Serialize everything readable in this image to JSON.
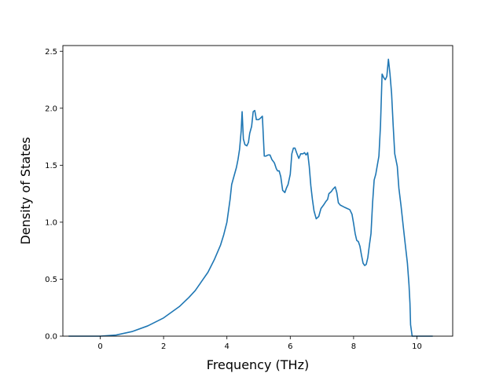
{
  "chart_data": {
    "type": "line",
    "title": "",
    "xlabel": "Frequency (THz)",
    "ylabel": "Density of States",
    "xlim": [
      -1.18,
      11.13
    ],
    "ylim": [
      0.0,
      2.55
    ],
    "xticks": [
      0,
      2,
      4,
      6,
      8,
      10
    ],
    "yticks": [
      0.0,
      0.5,
      1.0,
      1.5,
      2.0,
      2.5
    ],
    "xtick_labels": [
      "0",
      "2",
      "4",
      "6",
      "8",
      "10"
    ],
    "ytick_labels": [
      "0.0",
      "0.5",
      "1.0",
      "1.5",
      "2.0",
      "2.5"
    ],
    "grid": false,
    "legend": "none",
    "series": [
      {
        "color": "#1f77b4",
        "points": [
          [
            -1.0,
            0.0
          ],
          [
            0.0,
            0.0
          ],
          [
            0.5,
            0.01
          ],
          [
            1.0,
            0.04
          ],
          [
            1.5,
            0.09
          ],
          [
            2.0,
            0.16
          ],
          [
            2.5,
            0.26
          ],
          [
            2.8,
            0.34
          ],
          [
            3.0,
            0.4
          ],
          [
            3.2,
            0.48
          ],
          [
            3.4,
            0.56
          ],
          [
            3.6,
            0.67
          ],
          [
            3.8,
            0.8
          ],
          [
            3.9,
            0.89
          ],
          [
            4.0,
            1.0
          ],
          [
            4.05,
            1.1
          ],
          [
            4.1,
            1.2
          ],
          [
            4.15,
            1.33
          ],
          [
            4.2,
            1.38
          ],
          [
            4.25,
            1.43
          ],
          [
            4.3,
            1.48
          ],
          [
            4.35,
            1.55
          ],
          [
            4.4,
            1.64
          ],
          [
            4.45,
            1.8
          ],
          [
            4.48,
            1.97
          ],
          [
            4.52,
            1.73
          ],
          [
            4.57,
            1.68
          ],
          [
            4.63,
            1.67
          ],
          [
            4.68,
            1.7
          ],
          [
            4.72,
            1.78
          ],
          [
            4.78,
            1.84
          ],
          [
            4.83,
            1.97
          ],
          [
            4.88,
            1.98
          ],
          [
            4.93,
            1.9
          ],
          [
            5.0,
            1.9
          ],
          [
            5.05,
            1.91
          ],
          [
            5.12,
            1.93
          ],
          [
            5.18,
            1.58
          ],
          [
            5.23,
            1.58
          ],
          [
            5.3,
            1.59
          ],
          [
            5.36,
            1.59
          ],
          [
            5.42,
            1.55
          ],
          [
            5.5,
            1.52
          ],
          [
            5.56,
            1.47
          ],
          [
            5.6,
            1.45
          ],
          [
            5.65,
            1.45
          ],
          [
            5.7,
            1.4
          ],
          [
            5.76,
            1.28
          ],
          [
            5.83,
            1.26
          ],
          [
            5.88,
            1.3
          ],
          [
            5.93,
            1.33
          ],
          [
            6.0,
            1.42
          ],
          [
            6.05,
            1.6
          ],
          [
            6.1,
            1.65
          ],
          [
            6.15,
            1.65
          ],
          [
            6.2,
            1.61
          ],
          [
            6.27,
            1.56
          ],
          [
            6.33,
            1.6
          ],
          [
            6.4,
            1.6
          ],
          [
            6.45,
            1.61
          ],
          [
            6.5,
            1.59
          ],
          [
            6.55,
            1.61
          ],
          [
            6.6,
            1.49
          ],
          [
            6.65,
            1.32
          ],
          [
            6.7,
            1.2
          ],
          [
            6.75,
            1.1
          ],
          [
            6.82,
            1.03
          ],
          [
            6.9,
            1.05
          ],
          [
            6.97,
            1.12
          ],
          [
            7.05,
            1.15
          ],
          [
            7.12,
            1.18
          ],
          [
            7.18,
            1.2
          ],
          [
            7.22,
            1.25
          ],
          [
            7.3,
            1.27
          ],
          [
            7.35,
            1.29
          ],
          [
            7.42,
            1.31
          ],
          [
            7.47,
            1.26
          ],
          [
            7.52,
            1.17
          ],
          [
            7.58,
            1.15
          ],
          [
            7.65,
            1.14
          ],
          [
            7.72,
            1.13
          ],
          [
            7.8,
            1.12
          ],
          [
            7.88,
            1.11
          ],
          [
            7.95,
            1.07
          ],
          [
            8.0,
            0.99
          ],
          [
            8.05,
            0.9
          ],
          [
            8.1,
            0.84
          ],
          [
            8.15,
            0.83
          ],
          [
            8.2,
            0.79
          ],
          [
            8.25,
            0.71
          ],
          [
            8.3,
            0.64
          ],
          [
            8.35,
            0.62
          ],
          [
            8.4,
            0.63
          ],
          [
            8.45,
            0.69
          ],
          [
            8.5,
            0.8
          ],
          [
            8.55,
            0.9
          ],
          [
            8.6,
            1.17
          ],
          [
            8.65,
            1.37
          ],
          [
            8.7,
            1.42
          ],
          [
            8.75,
            1.5
          ],
          [
            8.8,
            1.58
          ],
          [
            8.85,
            1.85
          ],
          [
            8.9,
            2.3
          ],
          [
            8.95,
            2.27
          ],
          [
            9.0,
            2.25
          ],
          [
            9.05,
            2.28
          ],
          [
            9.1,
            2.43
          ],
          [
            9.15,
            2.3
          ],
          [
            9.2,
            2.13
          ],
          [
            9.25,
            1.85
          ],
          [
            9.3,
            1.6
          ],
          [
            9.38,
            1.49
          ],
          [
            9.43,
            1.3
          ],
          [
            9.5,
            1.14
          ],
          [
            9.57,
            0.96
          ],
          [
            9.63,
            0.81
          ],
          [
            9.7,
            0.64
          ],
          [
            9.75,
            0.45
          ],
          [
            9.78,
            0.29
          ],
          [
            9.8,
            0.1
          ],
          [
            9.85,
            0.0
          ],
          [
            10.5,
            0.0
          ]
        ]
      }
    ]
  }
}
